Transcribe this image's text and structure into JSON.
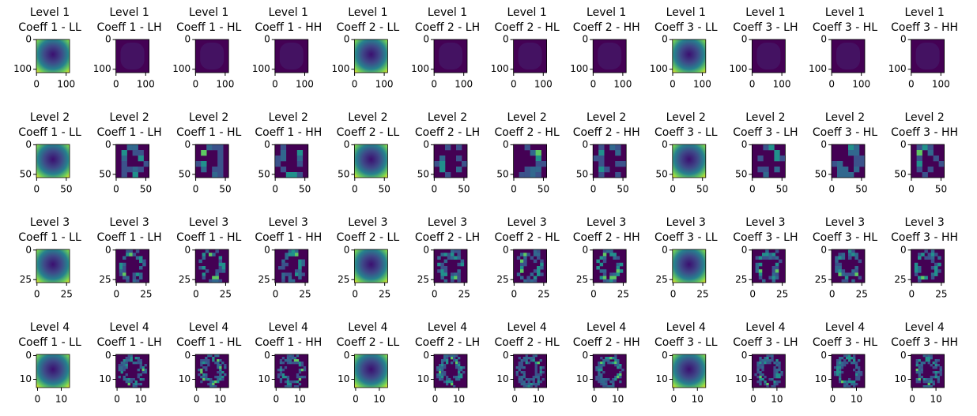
{
  "figure": {
    "columns": [
      "Coeff 1 - LL",
      "Coeff 1 - LH",
      "Coeff 1 - HL",
      "Coeff 1 - HH",
      "Coeff 2 - LL",
      "Coeff 2 - LH",
      "Coeff 2 - HL",
      "Coeff 2 - HH",
      "Coeff 3 - LL",
      "Coeff 3 - LH",
      "Coeff 3 - HL",
      "Coeff 3 - HH"
    ],
    "rows": [
      {
        "title": "Level 1",
        "xlim": [
          -0.5,
          111.5
        ],
        "ylim": [
          111.5,
          -0.5
        ],
        "xticks": [
          0,
          100
        ],
        "yticks": [
          0,
          100
        ]
      },
      {
        "title": "Level 2",
        "xlim": [
          -0.5,
          55.5
        ],
        "ylim": [
          55.5,
          -0.5
        ],
        "xticks": [
          0,
          50
        ],
        "yticks": [
          0,
          50
        ]
      },
      {
        "title": "Level 3",
        "xlim": [
          -0.5,
          27.5
        ],
        "ylim": [
          27.5,
          -0.5
        ],
        "xticks": [
          0,
          25
        ],
        "yticks": [
          0,
          25
        ]
      },
      {
        "title": "Level 4",
        "xlim": [
          -0.5,
          13.5
        ],
        "ylim": [
          13.5,
          -0.5
        ],
        "xticks": [
          0,
          10
        ],
        "yticks": [
          0,
          10
        ]
      }
    ]
  }
}
